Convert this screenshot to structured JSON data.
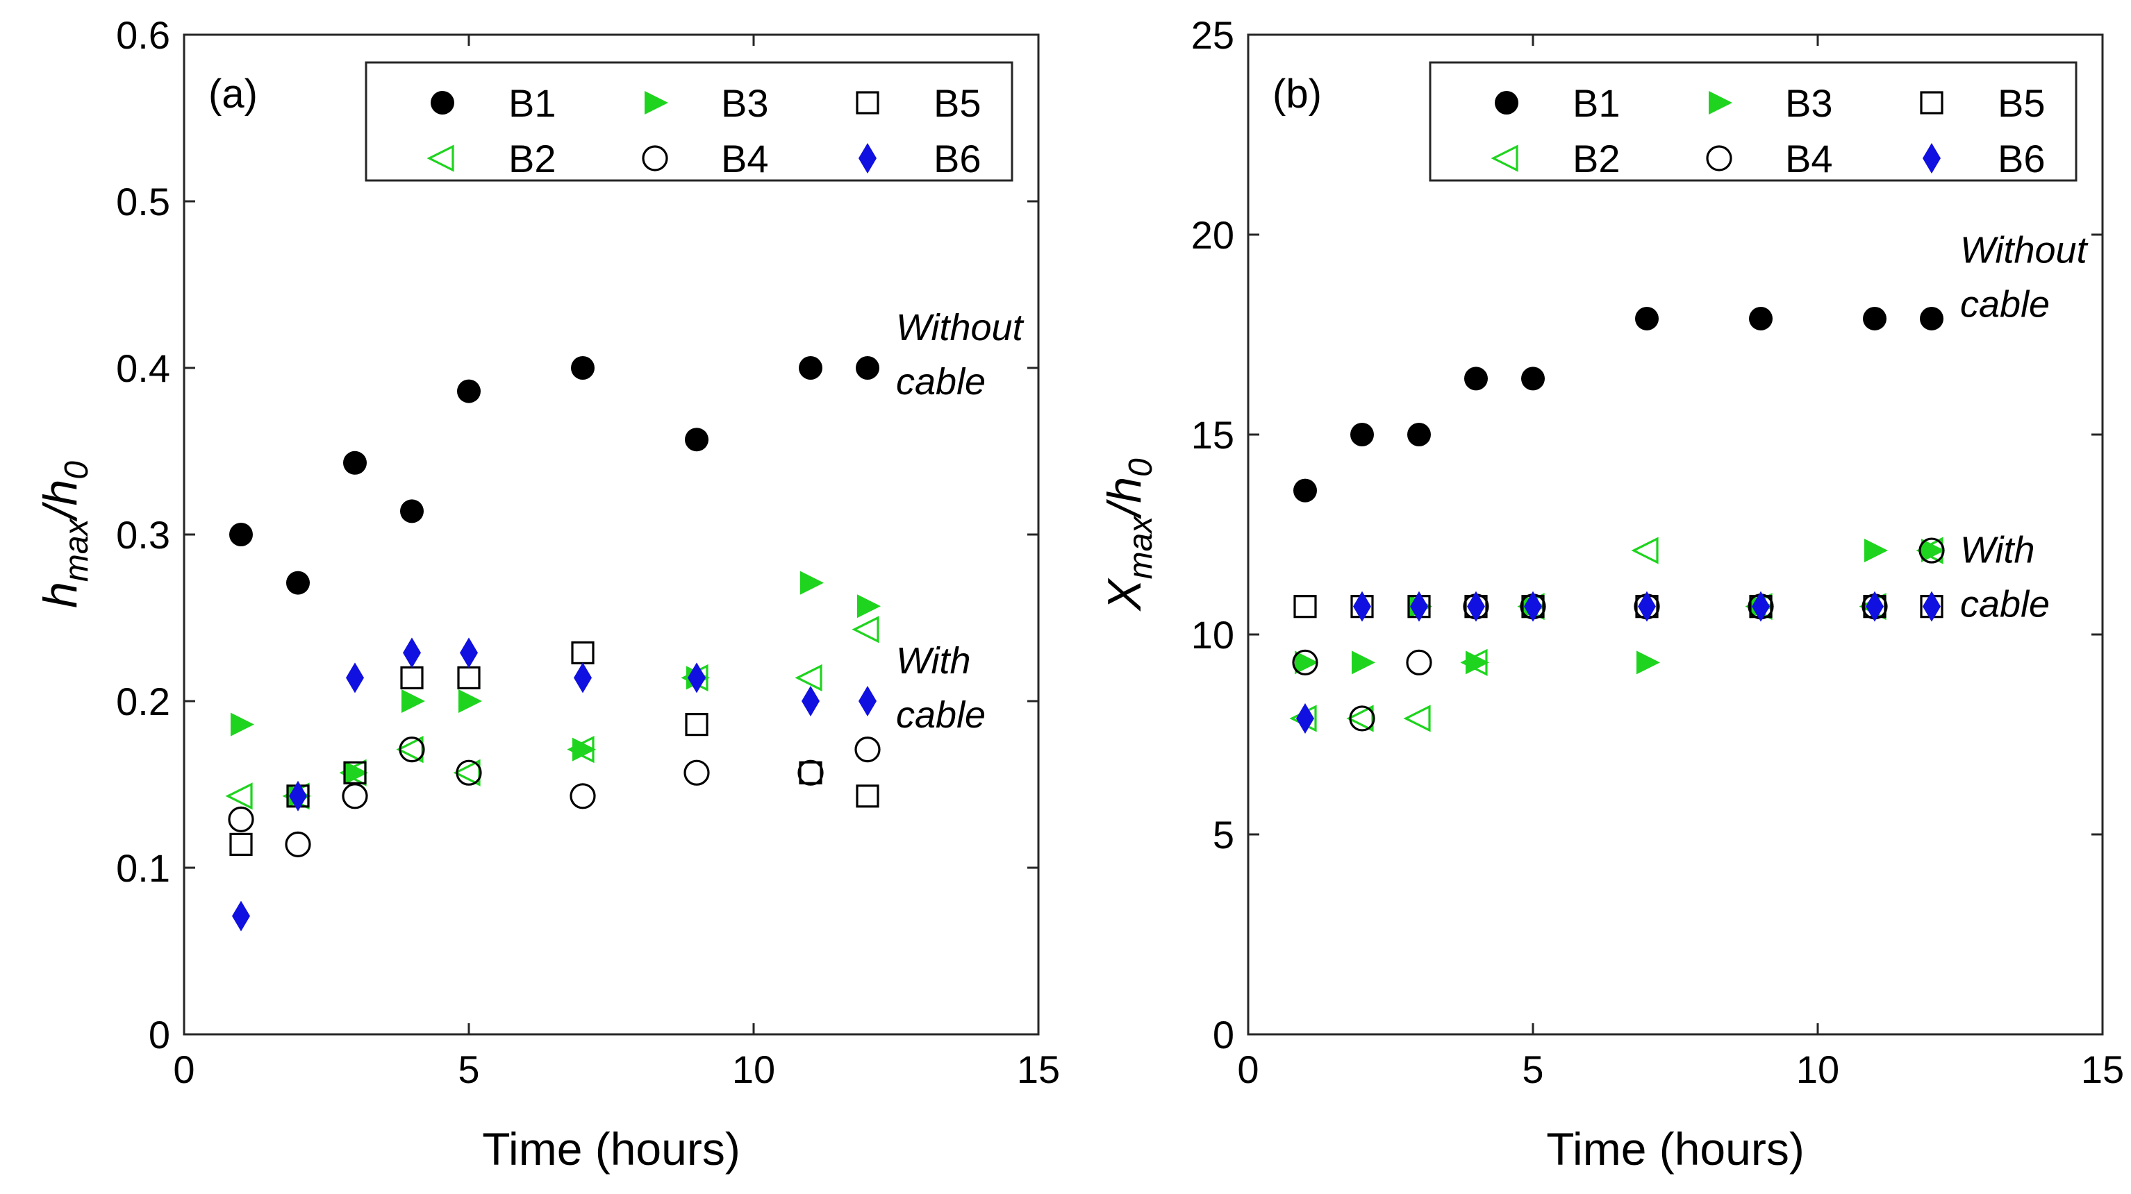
{
  "chart_data": [
    {
      "type": "scatter",
      "panel_label": "(a)",
      "xlabel": "Time (hours)",
      "ylabel_main": "h",
      "ylabel_sub1": "max",
      "ylabel_sep": "/h",
      "ylabel_sub2": "0",
      "xlim": [
        0,
        15
      ],
      "ylim": [
        0,
        0.6
      ],
      "xticks": [
        "0",
        "5",
        "10",
        "15"
      ],
      "yticks": [
        "0",
        "0.1",
        "0.2",
        "0.3",
        "0.4",
        "0.5",
        "0.6"
      ],
      "annotations": [
        {
          "lines": [
            "Without",
            "cable"
          ],
          "x": 12.5,
          "y": 0.4
        },
        {
          "lines": [
            "With",
            "cable"
          ],
          "x": 12.5,
          "y": 0.2
        }
      ],
      "series": [
        {
          "name": "B1",
          "marker": "filled-circle",
          "color": "#000000",
          "x": [
            1,
            2,
            3,
            4,
            5,
            7,
            9,
            11,
            12
          ],
          "y": [
            0.3,
            0.271,
            0.343,
            0.314,
            0.386,
            0.4,
            0.357,
            0.4,
            0.4
          ]
        },
        {
          "name": "B2",
          "marker": "open-triangle-left",
          "color": "#1ed41e",
          "x": [
            1,
            2,
            3,
            4,
            5,
            7,
            9,
            11,
            12
          ],
          "y": [
            0.143,
            0.143,
            0.157,
            0.171,
            0.157,
            0.171,
            0.214,
            0.214,
            0.243
          ]
        },
        {
          "name": "B3",
          "marker": "filled-triangle-right",
          "color": "#1ed41e",
          "x": [
            1,
            2,
            3,
            4,
            5,
            7,
            9,
            11,
            12
          ],
          "y": [
            0.186,
            0.143,
            0.157,
            0.2,
            0.2,
            0.171,
            0.214,
            0.271,
            0.257
          ]
        },
        {
          "name": "B4",
          "marker": "open-circle",
          "color": "#000000",
          "x": [
            1,
            2,
            3,
            4,
            5,
            7,
            9,
            11,
            12
          ],
          "y": [
            0.129,
            0.114,
            0.143,
            0.171,
            0.157,
            0.143,
            0.157,
            0.157,
            0.171
          ]
        },
        {
          "name": "B5",
          "marker": "open-square",
          "color": "#000000",
          "x": [
            1,
            2,
            3,
            4,
            5,
            7,
            9,
            11,
            12
          ],
          "y": [
            0.114,
            0.143,
            0.157,
            0.214,
            0.214,
            0.229,
            0.186,
            0.157,
            0.143
          ]
        },
        {
          "name": "B6",
          "marker": "filled-diamond",
          "color": "#1010e0",
          "x": [
            1,
            2,
            3,
            4,
            5,
            7,
            9,
            11,
            12
          ],
          "y": [
            0.071,
            0.143,
            0.214,
            0.229,
            0.229,
            0.214,
            0.214,
            0.2,
            0.2
          ]
        }
      ]
    },
    {
      "type": "scatter",
      "panel_label": "(b)",
      "xlabel": "Time (hours)",
      "ylabel_main": "X",
      "ylabel_sub1": "max",
      "ylabel_sep": "/h",
      "ylabel_sub2": "0",
      "xlim": [
        0,
        15
      ],
      "ylim": [
        0,
        25
      ],
      "xticks": [
        "0",
        "5",
        "10",
        "15"
      ],
      "yticks": [
        "0",
        "5",
        "10",
        "15",
        "20",
        "25"
      ],
      "annotations": [
        {
          "lines": [
            "Without",
            "cable"
          ],
          "x": 12.5,
          "y": 18.6
        },
        {
          "lines": [
            "With",
            "cable"
          ],
          "x": 12.5,
          "y": 11.1
        }
      ],
      "series": [
        {
          "name": "B1",
          "marker": "filled-circle",
          "color": "#000000",
          "x": [
            1,
            2,
            3,
            4,
            5,
            7,
            9,
            11,
            12
          ],
          "y": [
            13.6,
            15.0,
            15.0,
            16.4,
            16.4,
            17.9,
            17.9,
            17.9,
            17.9
          ]
        },
        {
          "name": "B2",
          "marker": "open-triangle-left",
          "color": "#1ed41e",
          "x": [
            1,
            2,
            3,
            4,
            5,
            7,
            9,
            11,
            12
          ],
          "y": [
            7.9,
            7.9,
            7.9,
            9.3,
            10.7,
            12.1,
            10.7,
            10.7,
            12.1
          ]
        },
        {
          "name": "B3",
          "marker": "filled-triangle-right",
          "color": "#1ed41e",
          "x": [
            1,
            2,
            3,
            4,
            5,
            7,
            9,
            11,
            12
          ],
          "y": [
            9.3,
            9.3,
            10.7,
            9.3,
            10.7,
            9.3,
            10.7,
            12.1,
            12.1
          ]
        },
        {
          "name": "B4",
          "marker": "open-circle",
          "color": "#000000",
          "x": [
            1,
            2,
            3,
            4,
            5,
            7,
            9,
            11,
            12
          ],
          "y": [
            9.3,
            7.9,
            9.3,
            10.7,
            10.7,
            10.7,
            10.7,
            10.7,
            12.1
          ]
        },
        {
          "name": "B5",
          "marker": "open-square",
          "color": "#000000",
          "x": [
            1,
            2,
            3,
            4,
            5,
            7,
            9,
            11,
            12
          ],
          "y": [
            10.7,
            10.7,
            10.7,
            10.7,
            10.7,
            10.7,
            10.7,
            10.7,
            10.7
          ]
        },
        {
          "name": "B6",
          "marker": "filled-diamond",
          "color": "#1010e0",
          "x": [
            1,
            2,
            3,
            4,
            5,
            7,
            9,
            11,
            12
          ],
          "y": [
            7.9,
            10.7,
            10.7,
            10.7,
            10.7,
            10.7,
            10.7,
            10.7,
            10.7
          ]
        }
      ]
    }
  ],
  "legend_order": [
    "B1",
    "B3",
    "B5",
    "B2",
    "B4",
    "B6"
  ]
}
